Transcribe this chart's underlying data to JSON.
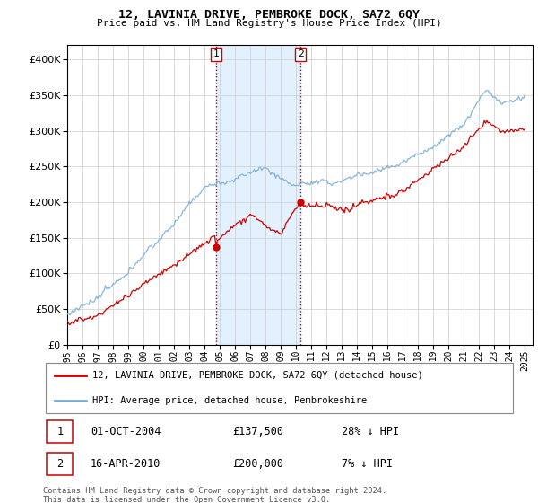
{
  "title": "12, LAVINIA DRIVE, PEMBROKE DOCK, SA72 6QY",
  "subtitle": "Price paid vs. HM Land Registry's House Price Index (HPI)",
  "legend_line1": "12, LAVINIA DRIVE, PEMBROKE DOCK, SA72 6QY (detached house)",
  "legend_line2": "HPI: Average price, detached house, Pembrokeshire",
  "annotation1": {
    "num": "1",
    "date": "01-OCT-2004",
    "price": "£137,500",
    "pct": "28% ↓ HPI"
  },
  "annotation2": {
    "num": "2",
    "date": "16-APR-2010",
    "price": "£200,000",
    "pct": "7% ↓ HPI"
  },
  "footer": "Contains HM Land Registry data © Crown copyright and database right 2024.\nThis data is licensed under the Open Government Licence v3.0.",
  "hpi_color": "#7aadd4",
  "price_color": "#cc0000",
  "marker1_x": 2004.75,
  "marker2_x": 2010.29,
  "marker1_y": 137500,
  "marker2_y": 200000,
  "vline_color": "#cc0000",
  "vline_style": ":",
  "shade_color": "#ddeeff",
  "ylim": [
    0,
    420000
  ],
  "xlim_start": 1995,
  "xlim_end": 2025.5,
  "yticks": [
    0,
    50000,
    100000,
    150000,
    200000,
    250000,
    300000,
    350000,
    400000
  ],
  "xticks": [
    1995,
    1996,
    1997,
    1998,
    1999,
    2000,
    2001,
    2002,
    2003,
    2004,
    2005,
    2006,
    2007,
    2008,
    2009,
    2010,
    2011,
    2012,
    2013,
    2014,
    2015,
    2016,
    2017,
    2018,
    2019,
    2020,
    2021,
    2022,
    2023,
    2024,
    2025
  ]
}
